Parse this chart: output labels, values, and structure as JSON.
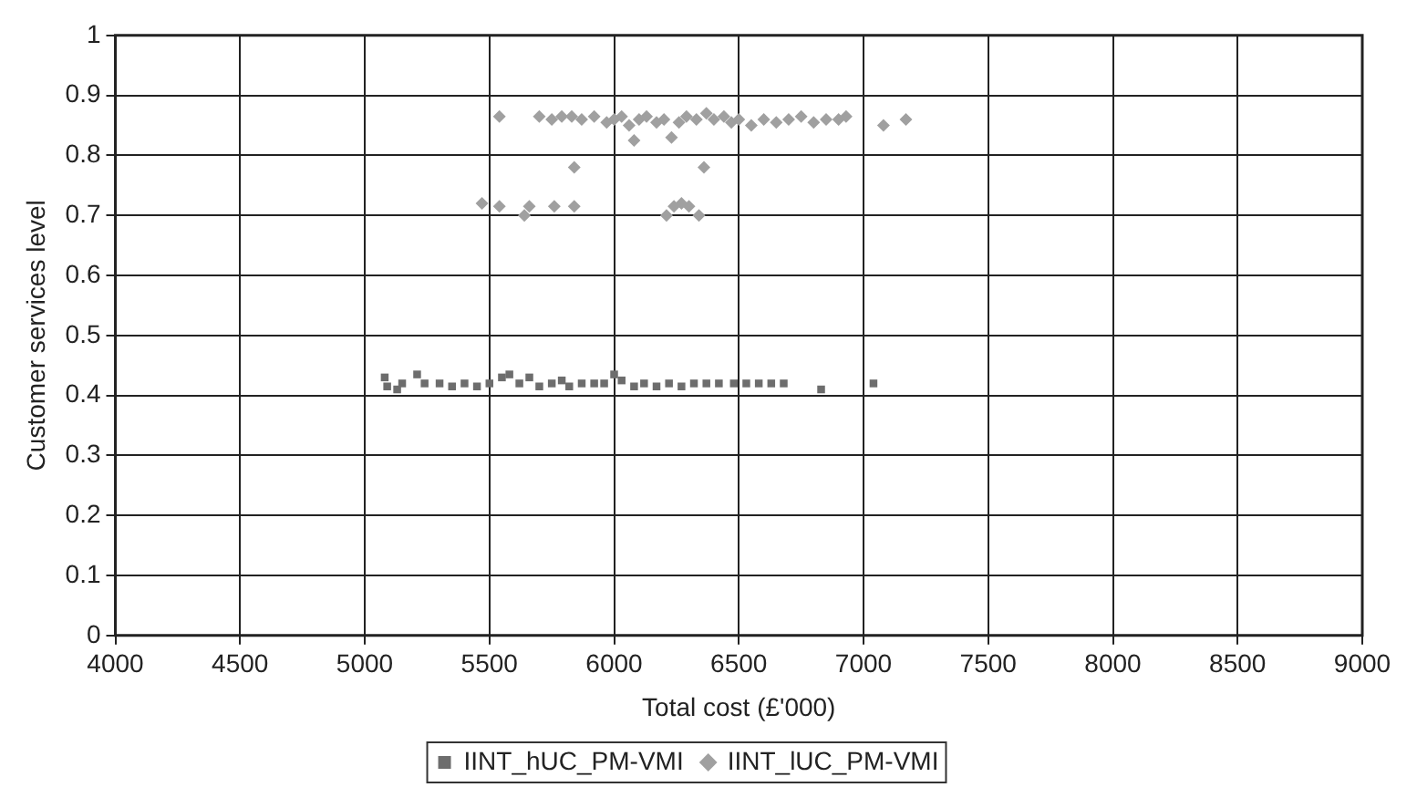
{
  "chart_data": {
    "type": "scatter",
    "xlabel": "Total cost (£'000)",
    "ylabel": "Customer services level",
    "xlim": [
      4000,
      9000
    ],
    "xticks": [
      4000,
      4500,
      5000,
      5500,
      6000,
      6500,
      7000,
      7500,
      8000,
      8500,
      9000
    ],
    "ylim": [
      0,
      1
    ],
    "yticks": [
      0,
      0.1,
      0.2,
      0.3,
      0.4,
      0.5,
      0.6,
      0.7,
      0.8,
      0.9,
      1
    ],
    "grid": true,
    "legend": "bottom",
    "series": [
      {
        "name": "IINT_hUC_PM-VMI",
        "color": "#6d6d6d",
        "marker": "square",
        "x": [
          5080,
          5090,
          5130,
          5150,
          5210,
          5240,
          5300,
          5350,
          5400,
          5450,
          5500,
          5550,
          5580,
          5620,
          5660,
          5700,
          5750,
          5790,
          5820,
          5870,
          5920,
          5960,
          6000,
          6030,
          6080,
          6120,
          6170,
          6220,
          6270,
          6320,
          6370,
          6420,
          6480,
          6530,
          6580,
          6630,
          6680,
          6830,
          7040
        ],
        "values": [
          0.43,
          0.415,
          0.41,
          0.42,
          0.435,
          0.42,
          0.42,
          0.415,
          0.42,
          0.415,
          0.42,
          0.43,
          0.435,
          0.42,
          0.43,
          0.415,
          0.42,
          0.425,
          0.415,
          0.42,
          0.42,
          0.42,
          0.435,
          0.425,
          0.415,
          0.42,
          0.415,
          0.42,
          0.415,
          0.42,
          0.42,
          0.42,
          0.42,
          0.42,
          0.42,
          0.42,
          0.42,
          0.41,
          0.42
        ]
      },
      {
        "name": "IINT_lUC_PM-VMI",
        "color": "#a0a0a0",
        "marker": "diamond",
        "x": [
          5540,
          5700,
          5750,
          5790,
          5830,
          5870,
          5920,
          5970,
          6000,
          6030,
          6060,
          6080,
          6100,
          6130,
          6170,
          6200,
          6230,
          6260,
          6290,
          6330,
          6370,
          6400,
          6440,
          6470,
          6500,
          6550,
          6600,
          6650,
          6700,
          6750,
          6800,
          6850,
          6900,
          6930,
          7080,
          7170,
          6360,
          5840,
          5470,
          5540,
          5640,
          5660,
          5760,
          5840,
          6210,
          6240,
          6270,
          6300,
          6340
        ],
        "values": [
          0.865,
          0.865,
          0.86,
          0.865,
          0.865,
          0.86,
          0.865,
          0.855,
          0.86,
          0.865,
          0.85,
          0.825,
          0.86,
          0.865,
          0.855,
          0.86,
          0.83,
          0.855,
          0.865,
          0.86,
          0.87,
          0.86,
          0.865,
          0.855,
          0.86,
          0.85,
          0.86,
          0.855,
          0.86,
          0.865,
          0.855,
          0.86,
          0.86,
          0.865,
          0.85,
          0.86,
          0.78,
          0.78,
          0.72,
          0.715,
          0.7,
          0.715,
          0.715,
          0.715,
          0.7,
          0.715,
          0.72,
          0.715,
          0.7
        ]
      }
    ]
  }
}
